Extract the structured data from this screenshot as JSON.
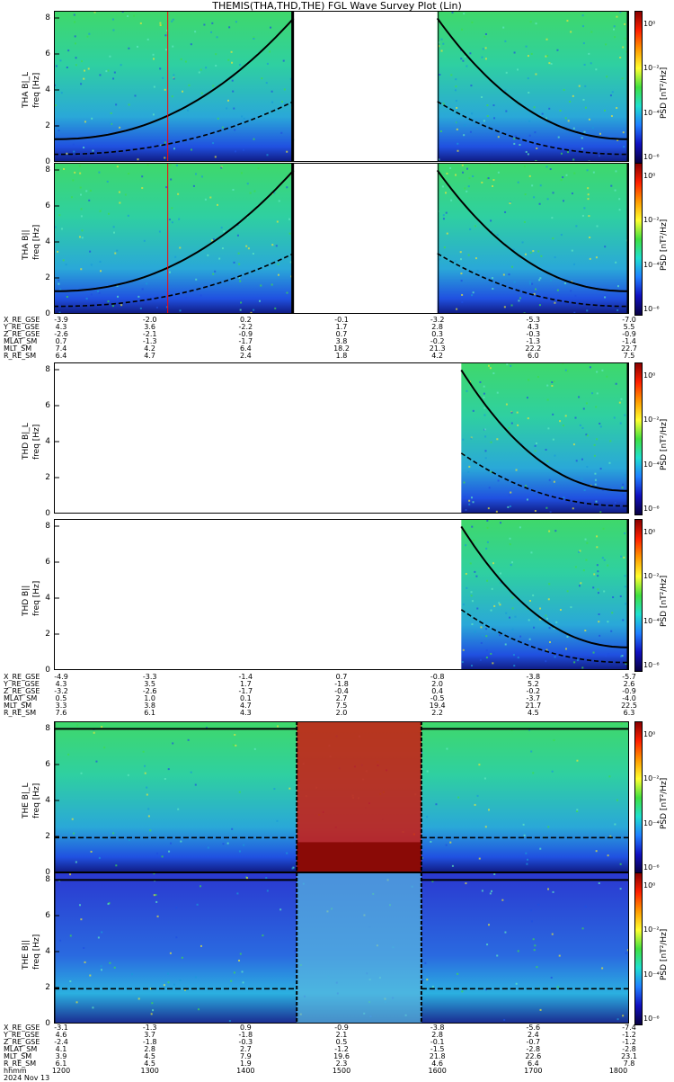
{
  "title": "THEMIS(THA,THD,THE) FGL Wave Survey Plot (Lin)",
  "colors": {
    "spectrogram_low": "#1a2fd8",
    "spectrogram_mid": "#21c4a8",
    "spectrogram_green": "#3fdc4a",
    "spectrogram_yellow": "#e8e63a",
    "spectrogram_red": "#cc1a10",
    "gap": "#ffffff",
    "line": "#000000",
    "marker_red": "#ff0000"
  },
  "panels": [
    {
      "id": "tha-bl",
      "ylabel": "THA B|_L",
      "ylabel2": "freq [Hz]",
      "cb_title": "PSD [nT²/Hz]"
    },
    {
      "id": "tha-bll",
      "ylabel": "THA B||",
      "ylabel2": "freq [Hz]",
      "cb_title": "PSD [nT²/Hz]"
    },
    {
      "id": "thd-bl",
      "ylabel": "THD B|_L",
      "ylabel2": "freq [Hz]",
      "cb_title": "PSD [nT²/Hz]"
    },
    {
      "id": "thd-bll",
      "ylabel": "THD B||",
      "ylabel2": "freq [Hz]",
      "cb_title": "PSD [nT²/Hz]"
    },
    {
      "id": "the-bl",
      "ylabel": "THE B|_L",
      "ylabel2": "freq [Hz]",
      "cb_title": "PSD [nT²/Hz]"
    },
    {
      "id": "the-bll",
      "ylabel": "THE B||",
      "ylabel2": "freq [Hz]",
      "cb_title": "PSD [nT²/Hz]"
    }
  ],
  "yticks": [
    "0",
    "2",
    "4",
    "6",
    "8"
  ],
  "cb_ticks": [
    "10⁰",
    "10⁻²",
    "10⁻⁴",
    "10⁻⁶"
  ],
  "orbit_labels": [
    "X_RE_GSE",
    "Y_RE_GSE",
    "Z_RE_GSE",
    "MLAT_SM",
    "MLT_SM",
    "R_RE_SM"
  ],
  "bottom_labels": [
    "hhmm",
    "2024 Nov 13"
  ],
  "orbits": {
    "tha": [
      [
        "-3.9",
        "-2.0",
        "0.2",
        "-0.1",
        "-3.2",
        "-5.3",
        "-7.0"
      ],
      [
        "4.3",
        "3.6",
        "-2.2",
        "1.7",
        "2.8",
        "4.3",
        "5.5"
      ],
      [
        "-2.6",
        "-2.1",
        "-0.9",
        "0.7",
        "0.3",
        "-0.3",
        "-0.9"
      ],
      [
        "0.7",
        "-1.3",
        "-1.7",
        "3.8",
        "-0.2",
        "-1.3",
        "-1.4"
      ],
      [
        "7.4",
        "4.2",
        "6.4",
        "18.2",
        "21.3",
        "22.2",
        "22.7"
      ],
      [
        "6.4",
        "4.7",
        "2.4",
        "1.8",
        "4.2",
        "6.0",
        "7.5"
      ]
    ],
    "thd": [
      [
        "-4.9",
        "-3.3",
        "-1.4",
        "0.7",
        "-0.8",
        "-3.8",
        "-5.7"
      ],
      [
        "4.3",
        "3.5",
        "1.7",
        "-1.8",
        "2.0",
        "5.2",
        "2.6"
      ],
      [
        "-3.2",
        "-2.6",
        "-1.7",
        "-0.4",
        "0.4",
        "-0.2",
        "-0.9"
      ],
      [
        "0.5",
        "1.0",
        "0.1",
        "2.7",
        "-0.5",
        "-3.7",
        "-4.0"
      ],
      [
        "3.3",
        "3.8",
        "4.7",
        "7.5",
        "19.4",
        "21.7",
        "22.5"
      ],
      [
        "7.6",
        "6.1",
        "4.3",
        "2.0",
        "2.2",
        "4.5",
        "6.3"
      ]
    ],
    "the": [
      [
        "-3.1",
        "-1.3",
        "0.9",
        "-0.9",
        "-3.8",
        "-5.6",
        "-7.4"
      ],
      [
        "4.6",
        "3.7",
        "-1.8",
        "2.1",
        "2.8",
        "2.4",
        "-1.2"
      ],
      [
        "-2.4",
        "-1.8",
        "-0.3",
        "0.5",
        "-0.1",
        "-0.7",
        "-1.2"
      ],
      [
        "4.1",
        "2.8",
        "2.7",
        "-1.2",
        "-1.5",
        "-2.8",
        "-2.8"
      ],
      [
        "3.9",
        "4.5",
        "7.9",
        "19.6",
        "21.8",
        "22.6",
        "23.1"
      ],
      [
        "6.1",
        "4.5",
        "1.9",
        "2.3",
        "4.6",
        "6.4",
        "7.8"
      ]
    ],
    "hhmm": [
      "1200",
      "1300",
      "1400",
      "1500",
      "1600",
      "1700",
      "1800"
    ]
  },
  "chart_data": {
    "type": "heatmap",
    "title": "THEMIS(THA,THD,THE) FGL Wave Survey Plot (Lin)",
    "xlabel": "hhmm",
    "x_ticks": [
      "1200",
      "1300",
      "1400",
      "1500",
      "1600",
      "1700",
      "1800"
    ],
    "xlim": [
      "1200",
      "1800"
    ],
    "ylabel": "freq [Hz]",
    "ylim": [
      0,
      8
    ],
    "colorbar_label": "PSD [nT²/Hz]",
    "colorbar_scale": "log",
    "date": "2024 Nov 13",
    "panels": [
      {
        "probe": "THA",
        "component": "B|_L",
        "data_intervals": [
          [
            "1200",
            "1430"
          ],
          [
            "1600",
            "1800"
          ]
        ]
      },
      {
        "probe": "THA",
        "component": "B||",
        "data_intervals": [
          [
            "1200",
            "1430"
          ],
          [
            "1600",
            "1800"
          ]
        ]
      },
      {
        "probe": "THD",
        "component": "B|_L",
        "data_intervals": [
          [
            "1615",
            "1800"
          ]
        ]
      },
      {
        "probe": "THD",
        "component": "B||",
        "data_intervals": [
          [
            "1615",
            "1800"
          ]
        ]
      },
      {
        "probe": "THE",
        "component": "B|_L",
        "data_intervals": [
          [
            "1200",
            "1800"
          ]
        ]
      },
      {
        "probe": "THE",
        "component": "B||",
        "data_intervals": [
          [
            "1200",
            "1800"
          ]
        ]
      }
    ]
  }
}
